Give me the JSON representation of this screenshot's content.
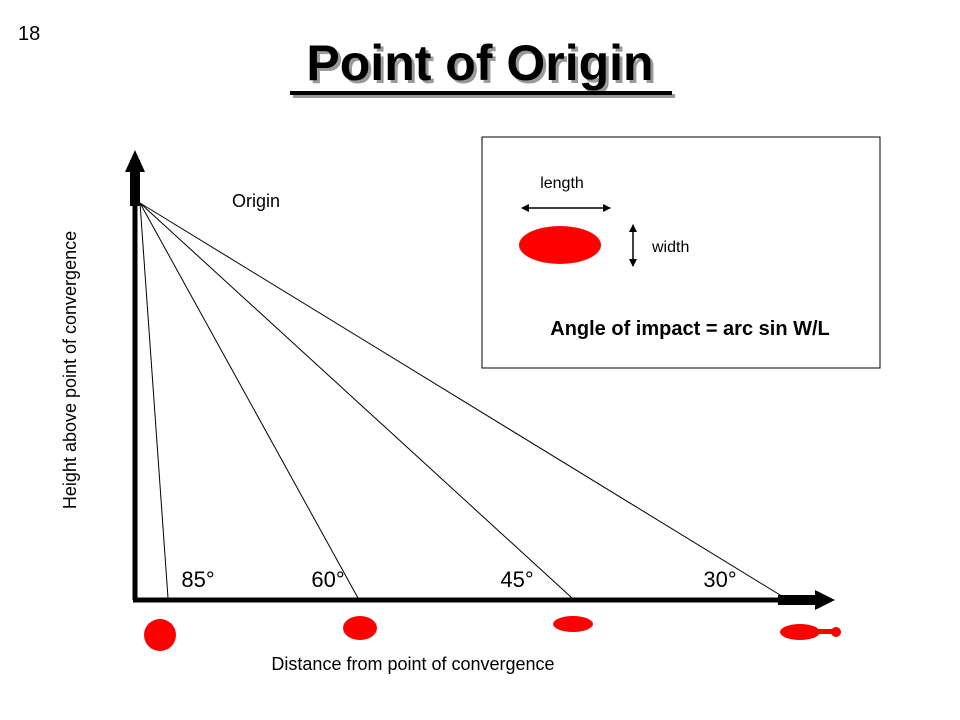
{
  "slide_number": "18",
  "title": "Point of Origin",
  "diagram": {
    "origin_label": "Origin",
    "y_axis_label": "Height above point of convergence",
    "x_axis_label": "Distance from point of convergence",
    "angles": [
      "85°",
      "60°",
      "45°",
      "30°"
    ]
  },
  "inset": {
    "length_label": "length",
    "width_label": "width",
    "formula": "Angle of impact = arc sin W/L"
  }
}
